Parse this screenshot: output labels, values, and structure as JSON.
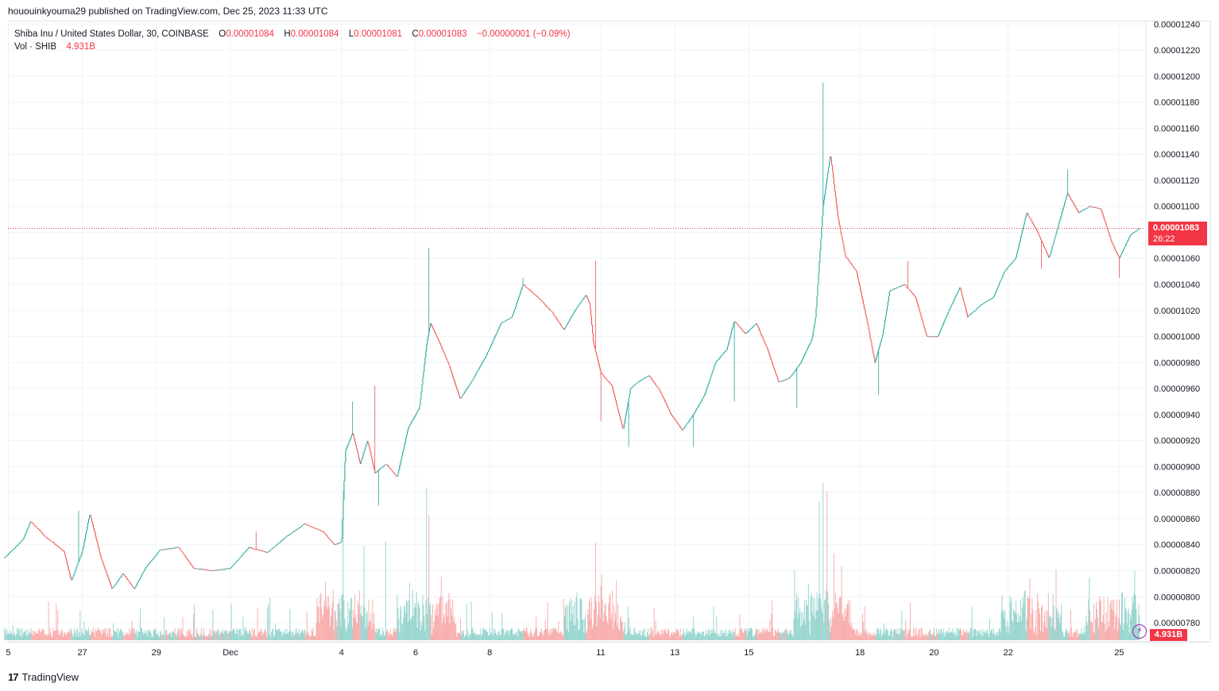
{
  "caption": "hououinkyouma29 published on TradingView.com, Dec 25, 2023 11:33 UTC",
  "legend": {
    "symbol": "Shiba Inu / United States Dollar, 30, COINBASE",
    "o_label": "O",
    "o_value": "0.00001084",
    "h_label": "H",
    "h_value": "0.00001084",
    "l_label": "L",
    "l_value": "0.00001081",
    "c_label": "C",
    "c_value": "0.00001083",
    "change": "−0.00000001 (−0.09%)",
    "vol_label": "Vol · SHIB",
    "vol_value": "4.931B"
  },
  "price_badge": {
    "price": "0.00001083",
    "countdown": "26:22"
  },
  "vol_badge": "4.931B",
  "brand": {
    "logo": "17",
    "name": "TradingView"
  },
  "colors": {
    "up": "#26a69a",
    "down": "#ef5350",
    "accent": "#f23645",
    "grid": "#f0f3fa"
  },
  "chart_data": {
    "type": "candlestick",
    "y_axis_side": "right",
    "ylim": [
      7.66e-06,
      1.242e-05
    ],
    "y_ticks": [
      "0.00001240",
      "0.00001220",
      "0.00001200",
      "0.00001180",
      "0.00001160",
      "0.00001140",
      "0.00001120",
      "0.00001100",
      "0.00001080",
      "0.00001060",
      "0.00001040",
      "0.00001020",
      "0.00001000",
      "0.00000980",
      "0.00000960",
      "0.00000940",
      "0.00000920",
      "0.00000900",
      "0.00000880",
      "0.00000860",
      "0.00000840",
      "0.00000820",
      "0.00000800",
      "0.00000780"
    ],
    "x_ticks": [
      {
        "label": "5",
        "day": -5
      },
      {
        "label": "27",
        "day": -3
      },
      {
        "label": "29",
        "day": -1
      },
      {
        "label": "Dec",
        "day": 1
      },
      {
        "label": "4",
        "day": 4
      },
      {
        "label": "6",
        "day": 6
      },
      {
        "label": "8",
        "day": 8
      },
      {
        "label": "11",
        "day": 11
      },
      {
        "label": "13",
        "day": 13
      },
      {
        "label": "15",
        "day": 15
      },
      {
        "label": "18",
        "day": 18
      },
      {
        "label": "20",
        "day": 20
      },
      {
        "label": "22",
        "day": 22
      },
      {
        "label": "25",
        "day": 25
      }
    ],
    "last_price": 1.083e-05,
    "anchors": [
      [
        -5.1,
        8.3e-06
      ],
      [
        -4.6,
        8.44e-06
      ],
      [
        -4.4,
        8.58e-06
      ],
      [
        -4.0,
        8.46e-06
      ],
      [
        -3.5,
        8.35e-06
      ],
      [
        -3.3,
        8.12e-06
      ],
      [
        -3.0,
        8.35e-06
      ],
      [
        -2.8,
        8.64e-06
      ],
      [
        -2.5,
        8.3e-06
      ],
      [
        -2.2,
        8.06e-06
      ],
      [
        -1.9,
        8.18e-06
      ],
      [
        -1.6,
        8.06e-06
      ],
      [
        -1.3,
        8.22e-06
      ],
      [
        -0.9,
        8.36e-06
      ],
      [
        -0.4,
        8.38e-06
      ],
      [
        0.0,
        8.22e-06
      ],
      [
        0.5,
        8.2e-06
      ],
      [
        1.0,
        8.22e-06
      ],
      [
        1.5,
        8.38e-06
      ],
      [
        2.0,
        8.34e-06
      ],
      [
        2.5,
        8.46e-06
      ],
      [
        3.0,
        8.56e-06
      ],
      [
        3.5,
        8.5e-06
      ],
      [
        3.8,
        8.4e-06
      ],
      [
        4.0,
        8.42e-06
      ],
      [
        4.1,
        9.12e-06
      ],
      [
        4.3,
        9.26e-06
      ],
      [
        4.5,
        9.02e-06
      ],
      [
        4.7,
        9.2e-06
      ],
      [
        4.9,
        8.95e-06
      ],
      [
        5.2,
        9.02e-06
      ],
      [
        5.5,
        8.92e-06
      ],
      [
        5.8,
        9.3e-06
      ],
      [
        6.1,
        9.45e-06
      ],
      [
        6.3,
        9.95e-06
      ],
      [
        6.4,
        1.01e-05
      ],
      [
        6.6,
        9.98e-06
      ],
      [
        6.9,
        9.78e-06
      ],
      [
        7.2,
        9.52e-06
      ],
      [
        7.5,
        9.65e-06
      ],
      [
        7.9,
        9.85e-06
      ],
      [
        8.3,
        1.01e-05
      ],
      [
        8.6,
        1.015e-05
      ],
      [
        8.9,
        1.04e-05
      ],
      [
        9.3,
        1.03e-05
      ],
      [
        9.7,
        1.018e-05
      ],
      [
        10.0,
        1.005e-05
      ],
      [
        10.3,
        1.02e-05
      ],
      [
        10.6,
        1.032e-05
      ],
      [
        10.7,
        1.025e-05
      ],
      [
        10.8,
        9.95e-06
      ],
      [
        11.0,
        9.72e-06
      ],
      [
        11.3,
        9.62e-06
      ],
      [
        11.6,
        9.28e-06
      ],
      [
        11.8,
        9.6e-06
      ],
      [
        12.0,
        9.65e-06
      ],
      [
        12.3,
        9.7e-06
      ],
      [
        12.6,
        9.58e-06
      ],
      [
        12.9,
        9.4e-06
      ],
      [
        13.2,
        9.28e-06
      ],
      [
        13.5,
        9.4e-06
      ],
      [
        13.8,
        9.55e-06
      ],
      [
        14.1,
        9.8e-06
      ],
      [
        14.4,
        9.9e-06
      ],
      [
        14.6,
        1.012e-05
      ],
      [
        14.9,
        1.002e-05
      ],
      [
        15.2,
        1.01e-05
      ],
      [
        15.5,
        9.9e-06
      ],
      [
        15.8,
        9.65e-06
      ],
      [
        16.1,
        9.68e-06
      ],
      [
        16.4,
        9.8e-06
      ],
      [
        16.7,
        9.98e-06
      ],
      [
        16.8,
        1.015e-05
      ],
      [
        17.0,
        1.1e-05
      ],
      [
        17.2,
        1.14e-05
      ],
      [
        17.4,
        1.092e-05
      ],
      [
        17.6,
        1.062e-05
      ],
      [
        17.9,
        1.05e-05
      ],
      [
        18.2,
        1.01e-05
      ],
      [
        18.4,
        9.8e-06
      ],
      [
        18.6,
        1e-05
      ],
      [
        18.8,
        1.035e-05
      ],
      [
        19.2,
        1.04e-05
      ],
      [
        19.5,
        1.03e-05
      ],
      [
        19.8,
        1e-05
      ],
      [
        20.1,
        1e-05
      ],
      [
        20.4,
        1.02e-05
      ],
      [
        20.7,
        1.038e-05
      ],
      [
        20.9,
        1.015e-05
      ],
      [
        21.3,
        1.025e-05
      ],
      [
        21.6,
        1.03e-05
      ],
      [
        21.9,
        1.05e-05
      ],
      [
        22.2,
        1.06e-05
      ],
      [
        22.5,
        1.095e-05
      ],
      [
        22.8,
        1.08e-05
      ],
      [
        23.1,
        1.06e-05
      ],
      [
        23.4,
        1.09e-05
      ],
      [
        23.6,
        1.11e-05
      ],
      [
        23.9,
        1.095e-05
      ],
      [
        24.2,
        1.1e-05
      ],
      [
        24.5,
        1.098e-05
      ],
      [
        24.8,
        1.072e-05
      ],
      [
        25.0,
        1.06e-05
      ],
      [
        25.3,
        1.078e-05
      ],
      [
        25.55,
        1.083e-05
      ]
    ],
    "spikes": [
      [
        -3.1,
        8.66e-06,
        0
      ],
      [
        1.7,
        8.5e-06,
        0
      ],
      [
        4.3,
        9.5e-06,
        0
      ],
      [
        4.9,
        9.62e-06,
        0
      ],
      [
        5.0,
        8.7e-06,
        1
      ],
      [
        6.35,
        1.068e-05,
        0
      ],
      [
        8.9,
        1.045e-05,
        0
      ],
      [
        10.85,
        1.058e-05,
        0
      ],
      [
        11.0,
        9.35e-06,
        1
      ],
      [
        11.75,
        9.15e-06,
        1
      ],
      [
        13.5,
        9.15e-06,
        1
      ],
      [
        14.6,
        9.5e-06,
        1
      ],
      [
        16.3,
        9.45e-06,
        1
      ],
      [
        17.0,
        1.195e-05,
        0
      ],
      [
        18.5,
        9.55e-06,
        1
      ],
      [
        19.3,
        1.058e-05,
        0
      ],
      [
        22.9,
        1.052e-05,
        1
      ],
      [
        23.6,
        1.128e-05,
        0
      ],
      [
        25.0,
        1.045e-05,
        1
      ]
    ],
    "volume_spikes": [
      [
        4.05,
        0.95,
        0
      ],
      [
        4.6,
        0.6,
        0
      ],
      [
        6.3,
        0.97,
        0
      ],
      [
        6.35,
        0.8,
        1
      ],
      [
        5.2,
        0.63,
        0
      ],
      [
        10.85,
        0.62,
        1
      ],
      [
        16.9,
        0.88,
        0
      ],
      [
        17.0,
        1.0,
        0
      ],
      [
        17.1,
        0.95,
        1
      ],
      [
        17.3,
        0.55,
        1
      ],
      [
        23.3,
        0.45,
        1
      ],
      [
        24.2,
        0.4,
        0
      ]
    ]
  }
}
